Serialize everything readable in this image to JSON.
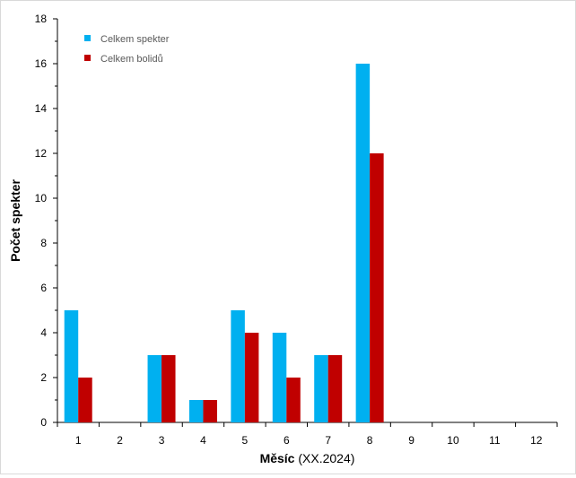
{
  "chart_data": {
    "type": "bar",
    "title": "",
    "xlabel_bold": "Měsíc",
    "xlabel_rest": " (XX.2024)",
    "ylabel": "Počet spekter",
    "categories": [
      "1",
      "2",
      "3",
      "4",
      "5",
      "6",
      "7",
      "8",
      "9",
      "10",
      "11",
      "12"
    ],
    "series": [
      {
        "name": "Celkem spekter",
        "color": "#00b0f0",
        "values": [
          5,
          0,
          3,
          1,
          5,
          4,
          3,
          16,
          0,
          0,
          0,
          0
        ]
      },
      {
        "name": "Celkem bolidů",
        "color": "#c00000",
        "values": [
          2,
          0,
          3,
          1,
          4,
          2,
          3,
          12,
          0,
          0,
          0,
          0
        ]
      }
    ],
    "ylim": [
      0,
      18
    ],
    "yticks": [
      0,
      2,
      4,
      6,
      8,
      10,
      12,
      14,
      16,
      18
    ],
    "grid": false,
    "legend": "top-left"
  }
}
